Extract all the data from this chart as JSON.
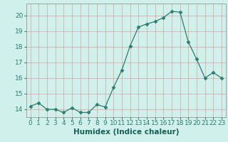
{
  "x": [
    0,
    1,
    2,
    3,
    4,
    5,
    6,
    7,
    8,
    9,
    10,
    11,
    12,
    13,
    14,
    15,
    16,
    17,
    18,
    19,
    20,
    21,
    22,
    23
  ],
  "y": [
    14.2,
    14.4,
    14.0,
    14.0,
    13.8,
    14.1,
    13.8,
    13.8,
    14.3,
    14.15,
    15.4,
    16.5,
    18.05,
    19.25,
    19.45,
    19.6,
    19.85,
    20.25,
    20.2,
    18.3,
    17.2,
    16.0,
    16.35,
    16.0
  ],
  "xlim": [
    -0.5,
    23.5
  ],
  "ylim": [
    13.5,
    20.75
  ],
  "yticks": [
    14,
    15,
    16,
    17,
    18,
    19,
    20
  ],
  "xticks": [
    0,
    1,
    2,
    3,
    4,
    5,
    6,
    7,
    8,
    9,
    10,
    11,
    12,
    13,
    14,
    15,
    16,
    17,
    18,
    19,
    20,
    21,
    22,
    23
  ],
  "xlabel": "Humidex (Indice chaleur)",
  "line_color": "#2e7d6e",
  "marker": "D",
  "marker_size": 2.5,
  "bg_color": "#cff0eb",
  "grid_color": "#e08080",
  "grid_alpha": 0.7,
  "xlabel_fontsize": 7.5,
  "tick_fontsize": 6.5
}
